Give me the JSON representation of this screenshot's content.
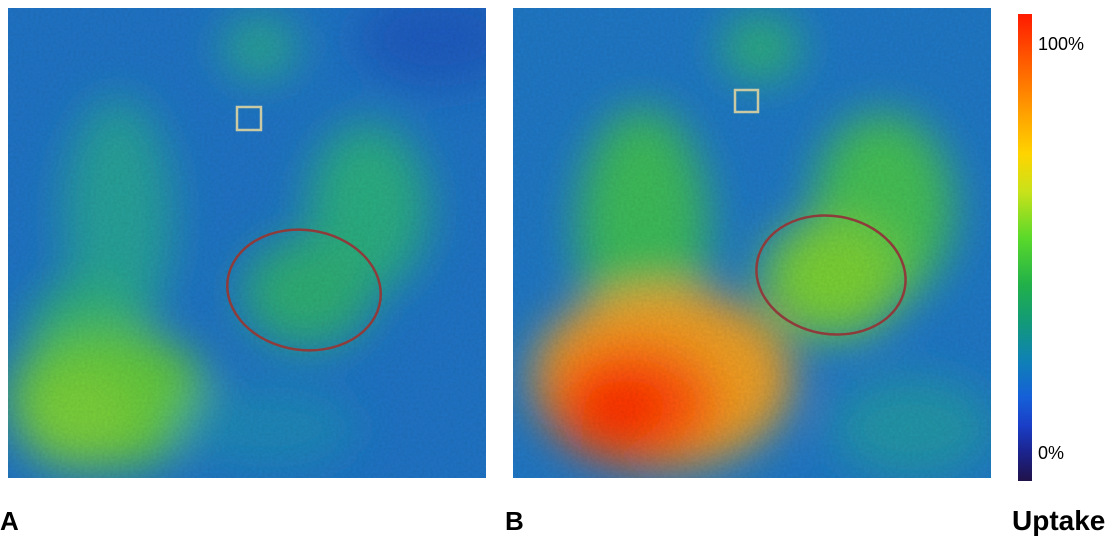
{
  "panels": [
    {
      "id": "A",
      "label": "A"
    },
    {
      "id": "B",
      "label": "B"
    }
  ],
  "colorbar": {
    "max_label": "100%",
    "min_label": "0%",
    "title": "Uptake",
    "colormap": "jet"
  },
  "colors": {
    "background_blue": "#1e78c8",
    "ellipse_roi": "#8b3a3a",
    "square_roi": "#c8c8a0"
  }
}
